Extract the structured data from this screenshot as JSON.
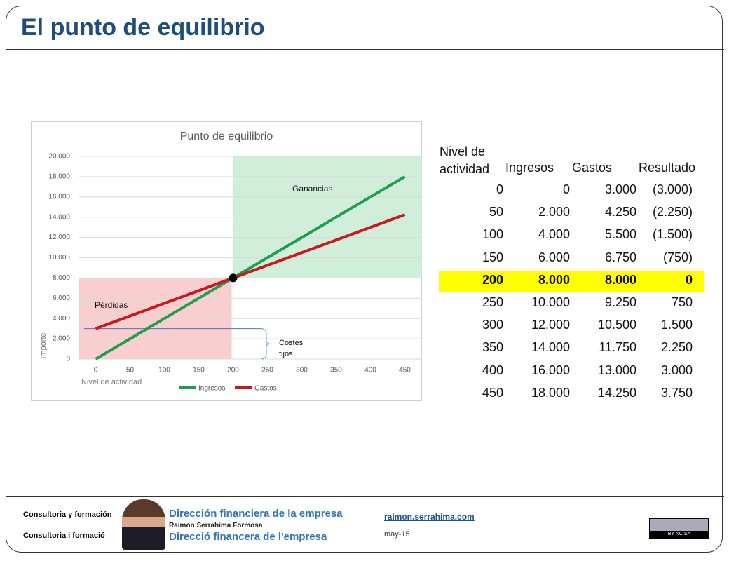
{
  "header": {
    "title": "El punto de equilibrio"
  },
  "chart_data": {
    "type": "line",
    "title": "Punto de equilibrio",
    "x_label": "Nivel de actividad",
    "y_label": "Importe",
    "categories": [
      "0",
      "50",
      "100",
      "150",
      "200",
      "250",
      "300",
      "350",
      "400",
      "450"
    ],
    "series": [
      {
        "name": "Ingresos",
        "color": "#1f9e4d",
        "values": [
          0,
          2000,
          4000,
          6000,
          8000,
          10000,
          12000,
          14000,
          16000,
          18000
        ]
      },
      {
        "name": "Gastos",
        "color": "#c8191e",
        "values": [
          3000,
          4250,
          5500,
          6750,
          8000,
          9250,
          10500,
          11750,
          13000,
          14250
        ]
      }
    ],
    "ylim": [
      0,
      20000
    ],
    "yticks": [
      0,
      {
        "value": 2000,
        "label": "2.000"
      },
      {
        "value": 4000,
        "label": "4.000"
      },
      {
        "value": 6000,
        "label": "6.000"
      },
      {
        "value": 8000,
        "label": "8.000"
      },
      {
        "value": 10000,
        "label": "10.000"
      },
      {
        "value": 12000,
        "label": "12.000"
      },
      {
        "value": 14000,
        "label": "14.000"
      },
      {
        "value": 16000,
        "label": "16.000"
      },
      {
        "value": 18000,
        "label": "18.000"
      },
      {
        "value": 20000,
        "label": "20.000"
      }
    ],
    "grid": true,
    "legend": "bottom",
    "annotations": [
      "Ganancias",
      "Pérdidas",
      "Costes fijos"
    ]
  },
  "table": {
    "header": [
      "Nivel de actividad",
      "Ingresos",
      "Gastos",
      "Resultado"
    ],
    "rows": [
      [
        "0",
        "0",
        "3.000",
        "(3.000)"
      ],
      [
        "50",
        "2.000",
        "4.250",
        "(2.250)"
      ],
      [
        "100",
        "4.000",
        "5.500",
        "(1.500)"
      ],
      [
        "150",
        "6.000",
        "6.750",
        "(750)"
      ],
      [
        "200",
        "8.000",
        "8.000",
        "0"
      ],
      [
        "250",
        "10.000",
        "9.250",
        "750"
      ],
      [
        "300",
        "12.000",
        "10.500",
        "1.500"
      ],
      [
        "350",
        "14.000",
        "11.750",
        "2.250"
      ],
      [
        "400",
        "16.000",
        "13.000",
        "3.000"
      ],
      [
        "450",
        "18.000",
        "14.250",
        "3.750"
      ]
    ],
    "highlighted_row": 4
  },
  "footer": {
    "left": [
      "Consultoria y formación",
      "Consultoria i formació"
    ],
    "brand": [
      "Dirección financiera de la empresa",
      "Raimon Serrahima Formosa",
      "Direcció financera de l'empresa"
    ],
    "link": "raimon.serrahima.com",
    "date": "may-15",
    "license": "BY NC SA"
  }
}
